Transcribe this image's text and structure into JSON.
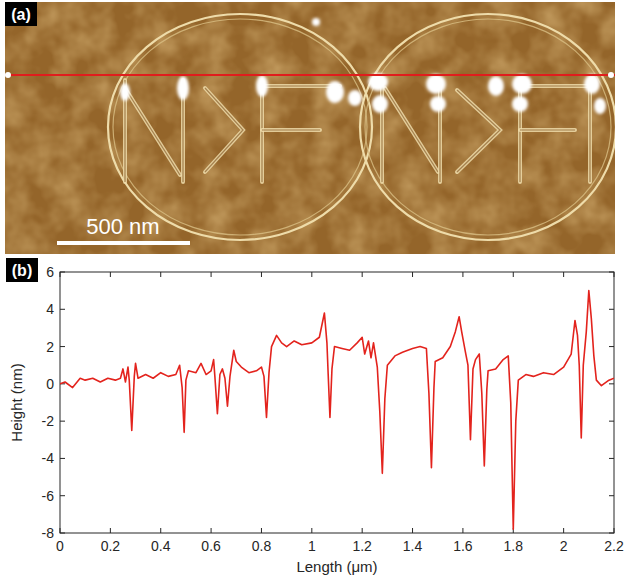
{
  "image_panel": {
    "label": "(a)",
    "scale_bar": "500 nm"
  },
  "chart_data": {
    "type": "line",
    "panel_label": "(b)",
    "x_label": "Length (μm)",
    "y_label": "Height (nm)",
    "color": "#e3231d",
    "xlim": [
      0,
      2.2
    ],
    "xticks": [
      0,
      0.2,
      0.4,
      0.6,
      0.8,
      1,
      1.2,
      1.4,
      1.6,
      1.8,
      2,
      2.2
    ],
    "ylim": [
      -8,
      6
    ],
    "yticks": [
      -8,
      -6,
      -4,
      -2,
      0,
      2,
      4,
      6
    ],
    "grid": false,
    "x": [
      0,
      0.02,
      0.05,
      0.08,
      0.1,
      0.13,
      0.16,
      0.19,
      0.22,
      0.24,
      0.25,
      0.26,
      0.27,
      0.275,
      0.285,
      0.295,
      0.3,
      0.31,
      0.34,
      0.37,
      0.4,
      0.43,
      0.46,
      0.475,
      0.485,
      0.493,
      0.5,
      0.51,
      0.54,
      0.56,
      0.58,
      0.6,
      0.61,
      0.615,
      0.625,
      0.635,
      0.645,
      0.655,
      0.665,
      0.675,
      0.69,
      0.7,
      0.72,
      0.75,
      0.78,
      0.8,
      0.81,
      0.82,
      0.83,
      0.84,
      0.86,
      0.88,
      0.9,
      0.93,
      0.96,
      1.0,
      1.03,
      1.05,
      1.06,
      1.065,
      1.072,
      1.08,
      1.09,
      1.12,
      1.15,
      1.18,
      1.2,
      1.21,
      1.225,
      1.235,
      1.245,
      1.26,
      1.27,
      1.28,
      1.29,
      1.3,
      1.33,
      1.36,
      1.4,
      1.43,
      1.455,
      1.465,
      1.475,
      1.485,
      1.49,
      1.52,
      1.55,
      1.57,
      1.585,
      1.595,
      1.61,
      1.62,
      1.63,
      1.64,
      1.65,
      1.665,
      1.675,
      1.685,
      1.695,
      1.7,
      1.73,
      1.76,
      1.78,
      1.79,
      1.8,
      1.81,
      1.82,
      1.85,
      1.88,
      1.92,
      1.96,
      2.0,
      2.03,
      2.045,
      2.055,
      2.062,
      2.07,
      2.078,
      2.09,
      2.1,
      2.11,
      2.12,
      2.13,
      2.15,
      2.18,
      2.2
    ],
    "values": [
      0.0,
      0.1,
      -0.2,
      0.3,
      0.2,
      0.3,
      0.1,
      0.3,
      0.2,
      0.3,
      0.8,
      0.1,
      0.9,
      0.2,
      -2.5,
      0.4,
      1.1,
      0.3,
      0.5,
      0.3,
      0.6,
      0.4,
      0.5,
      1.0,
      -0.2,
      -2.6,
      0.2,
      0.7,
      0.6,
      1.1,
      0.5,
      0.7,
      1.3,
      0.4,
      -1.6,
      0.5,
      0.8,
      0.3,
      -1.2,
      0.4,
      1.8,
      1.2,
      0.9,
      0.6,
      0.7,
      0.9,
      0.4,
      -1.8,
      0.6,
      2.0,
      2.6,
      2.2,
      2.0,
      2.3,
      2.1,
      2.2,
      2.5,
      3.8,
      2.2,
      0.5,
      -1.8,
      0.8,
      2.0,
      1.9,
      1.8,
      2.2,
      2.5,
      1.6,
      2.3,
      1.4,
      2.2,
      0.9,
      -1.5,
      -4.8,
      -0.8,
      1.0,
      1.5,
      1.7,
      1.9,
      2.0,
      1.9,
      -0.5,
      -4.5,
      -0.2,
      1.2,
      1.4,
      2.0,
      2.8,
      3.6,
      2.8,
      1.7,
      1.0,
      -3.0,
      0.8,
      1.3,
      1.6,
      -0.5,
      -4.4,
      -0.3,
      0.7,
      0.8,
      1.3,
      1.5,
      -1.0,
      -7.8,
      -2.0,
      0.2,
      0.5,
      0.4,
      0.6,
      0.5,
      0.9,
      1.6,
      3.4,
      2.6,
      1.0,
      -2.9,
      1.0,
      2.8,
      5.0,
      3.5,
      1.5,
      0.2,
      -0.1,
      0.2,
      0.3
    ]
  }
}
